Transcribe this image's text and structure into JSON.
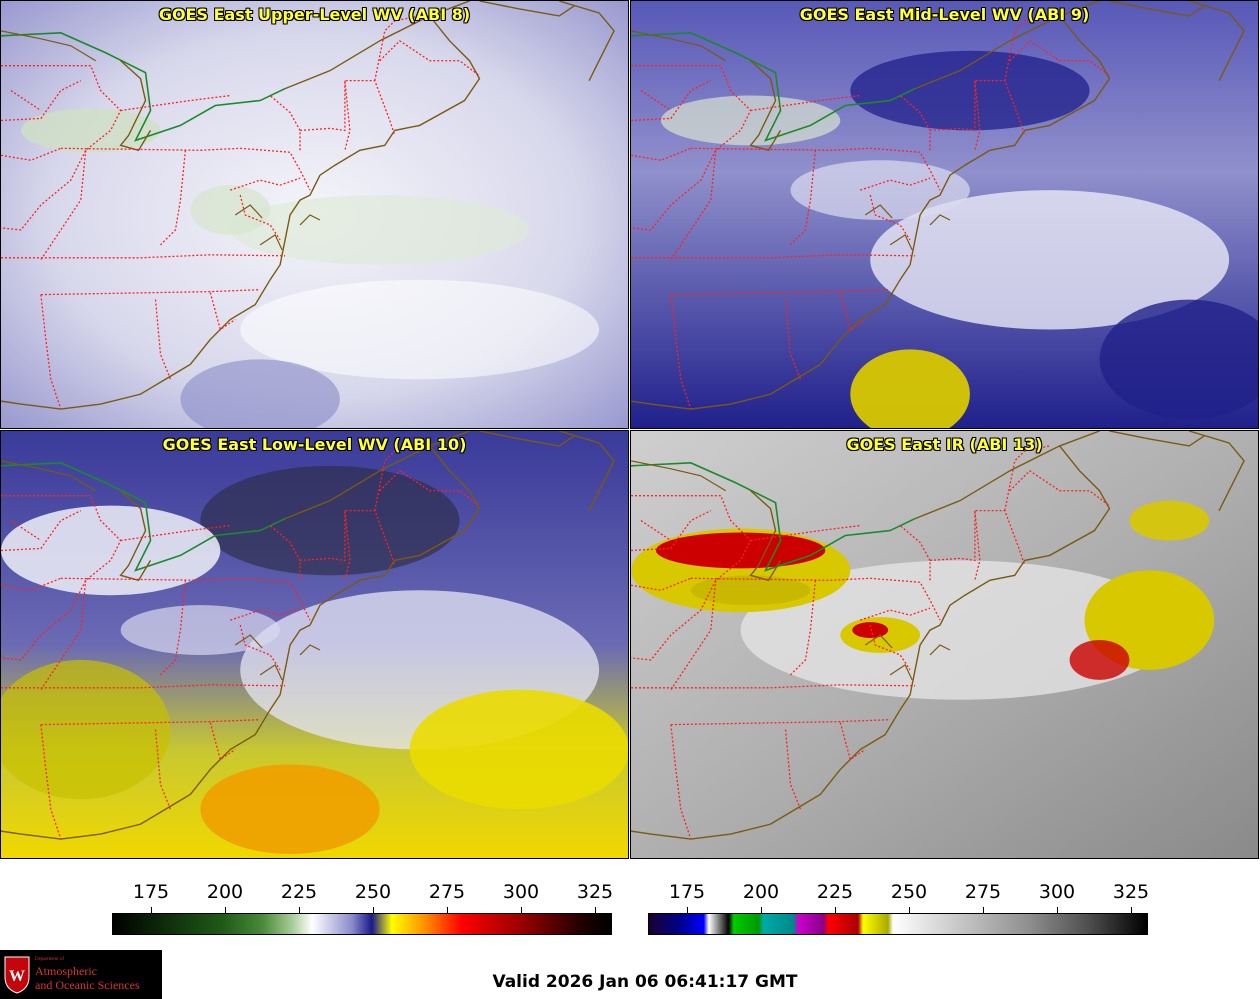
{
  "panels": [
    {
      "id": "p1",
      "title": "GOES East Upper-Level WV (ABI 8)"
    },
    {
      "id": "p2",
      "title": "GOES East Mid-Level WV (ABI 9)"
    },
    {
      "id": "p3",
      "title": "GOES East Low-Level WV (ABI 10)"
    },
    {
      "id": "p4",
      "title": "GOES East IR (ABI 13)"
    }
  ],
  "colorbars": {
    "wv": {
      "ticks": [
        "175",
        "200",
        "225",
        "250",
        "275",
        "300",
        "325"
      ]
    },
    "ir": {
      "ticks": [
        "175",
        "200",
        "225",
        "250",
        "275",
        "300",
        "325"
      ]
    }
  },
  "logo": {
    "dept_label": "Department of",
    "line1": "Atmospheric",
    "line2": "and Oceanic Sciences"
  },
  "valid_time": "Valid 2026 Jan 06 06:41:17 GMT",
  "colors": {
    "title_text": "#ffff3a",
    "state_borders": "#ff2020",
    "coastline": "#7a5a10",
    "international_border": "#1a8a2a"
  }
}
